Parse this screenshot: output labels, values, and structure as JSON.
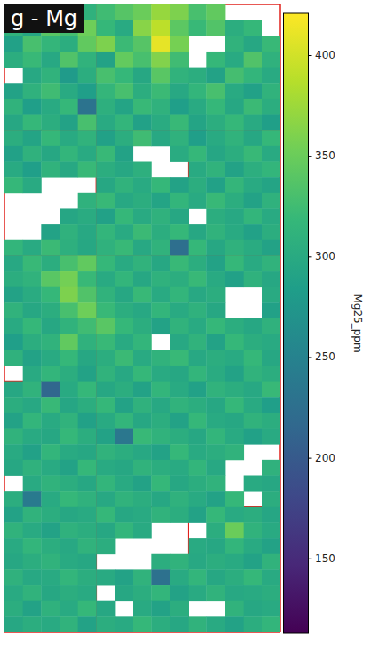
{
  "chart_data": {
    "type": "heatmap",
    "title": "g - Mg",
    "tick_labels": false,
    "cells": [
      [
        300,
        318,
        335,
        342,
        310,
        325,
        338,
        350,
        372,
        360,
        330,
        345,
        null,
        null,
        null
      ],
      [
        312,
        295,
        340,
        328,
        352,
        318,
        300,
        365,
        390,
        342,
        320,
        336,
        305,
        318,
        null
      ],
      [
        288,
        330,
        316,
        305,
        345,
        360,
        322,
        338,
        410,
        356,
        null,
        null,
        312,
        296,
        320
      ],
      [
        305,
        320,
        298,
        335,
        312,
        290,
        346,
        330,
        362,
        325,
        null,
        318,
        300,
        335,
        310
      ],
      [
        null,
        298,
        312,
        280,
        305,
        330,
        318,
        296,
        340,
        312,
        305,
        290,
        328,
        315,
        300
      ],
      [
        290,
        310,
        325,
        300,
        285,
        316,
        330,
        305,
        322,
        298,
        315,
        330,
        300,
        288,
        312
      ],
      [
        312,
        285,
        300,
        318,
        230,
        308,
        292,
        320,
        310,
        285,
        300,
        318,
        296,
        322,
        305
      ],
      [
        296,
        318,
        305,
        290,
        330,
        300,
        315,
        288,
        302,
        320,
        292,
        305,
        318,
        300,
        286
      ],
      [
        305,
        292,
        318,
        300,
        312,
        288,
        305,
        325,
        298,
        310,
        285,
        300,
        312,
        296,
        318
      ],
      [
        288,
        310,
        296,
        315,
        300,
        320,
        290,
        null,
        null,
        302,
        318,
        295,
        305,
        320,
        300
      ],
      [
        300,
        285,
        312,
        298,
        320,
        305,
        296,
        308,
        null,
        null,
        300,
        312,
        290,
        306,
        315
      ],
      [
        318,
        300,
        null,
        null,
        null,
        296,
        312,
        300,
        318,
        290,
        305,
        288,
        316,
        300,
        292
      ],
      [
        null,
        null,
        null,
        null,
        310,
        320,
        298,
        305,
        292,
        315,
        300,
        320,
        305,
        290,
        310
      ],
      [
        null,
        null,
        null,
        295,
        302,
        288,
        318,
        300,
        310,
        296,
        null,
        305,
        298,
        315,
        300
      ],
      [
        null,
        null,
        290,
        310,
        298,
        315,
        300,
        322,
        305,
        318,
        296,
        312,
        300,
        288,
        305
      ],
      [
        315,
        300,
        322,
        308,
        296,
        310,
        320,
        298,
        312,
        225,
        318,
        296,
        310,
        302,
        290
      ],
      [
        298,
        320,
        305,
        330,
        345,
        318,
        300,
        312,
        296,
        320,
        305,
        290,
        318,
        300,
        312
      ],
      [
        305,
        312,
        340,
        355,
        320,
        300,
        315,
        296,
        310,
        305,
        320,
        300,
        288,
        310,
        296
      ],
      [
        290,
        302,
        318,
        360,
        335,
        312,
        296,
        320,
        300,
        315,
        298,
        305,
        null,
        null,
        300
      ],
      [
        312,
        296,
        305,
        330,
        352,
        320,
        305,
        298,
        315,
        300,
        310,
        296,
        null,
        null,
        288
      ],
      [
        300,
        318,
        296,
        312,
        325,
        340,
        318,
        305,
        290,
        312,
        300,
        318,
        305,
        296,
        310
      ],
      [
        285,
        305,
        312,
        345,
        310,
        320,
        300,
        315,
        null,
        298,
        312,
        290,
        318,
        305,
        300
      ],
      [
        310,
        290,
        300,
        318,
        296,
        305,
        322,
        300,
        312,
        320,
        298,
        305,
        300,
        318,
        296
      ],
      [
        null,
        300,
        315,
        305,
        290,
        312,
        298,
        318,
        300,
        296,
        315,
        302,
        290,
        312,
        305
      ],
      [
        296,
        312,
        215,
        300,
        318,
        296,
        305,
        290,
        315,
        300,
        288,
        312,
        305,
        298,
        320
      ],
      [
        305,
        298,
        320,
        295,
        305,
        318,
        290,
        310,
        298,
        312,
        305,
        296,
        318,
        300,
        285
      ],
      [
        290,
        315,
        300,
        312,
        288,
        300,
        315,
        296,
        305,
        290,
        318,
        300,
        296,
        312,
        305
      ],
      [
        312,
        300,
        296,
        318,
        305,
        290,
        235,
        320,
        312,
        305,
        296,
        315,
        300,
        288,
        300
      ],
      [
        300,
        288,
        315,
        300,
        296,
        312,
        305,
        298,
        290,
        318,
        300,
        305,
        312,
        null,
        null
      ],
      [
        296,
        310,
        300,
        290,
        318,
        300,
        296,
        312,
        305,
        300,
        315,
        298,
        null,
        null,
        310
      ],
      [
        null,
        300,
        312,
        305,
        296,
        315,
        300,
        290,
        318,
        296,
        305,
        312,
        null,
        300,
        296
      ],
      [
        305,
        240,
        300,
        318,
        310,
        298,
        312,
        305,
        296,
        310,
        300,
        290,
        318,
        null,
        305
      ],
      [
        290,
        312,
        305,
        296,
        300,
        318,
        296,
        300,
        312,
        305,
        290,
        318,
        300,
        305,
        295
      ],
      [
        312,
        300,
        290,
        310,
        305,
        296,
        315,
        300,
        null,
        null,
        null,
        305,
        350,
        312,
        300
      ],
      [
        300,
        315,
        305,
        298,
        312,
        305,
        null,
        null,
        null,
        null,
        300,
        296,
        315,
        300,
        290
      ],
      [
        296,
        305,
        312,
        300,
        296,
        null,
        null,
        null,
        305,
        312,
        298,
        305,
        300,
        290,
        312
      ],
      [
        310,
        298,
        300,
        315,
        305,
        300,
        290,
        312,
        228,
        300,
        315,
        296,
        305,
        318,
        300
      ],
      [
        300,
        312,
        296,
        305,
        300,
        null,
        296,
        305,
        315,
        290,
        300,
        312,
        298,
        300,
        305
      ],
      [
        305,
        290,
        310,
        300,
        318,
        296,
        null,
        300,
        290,
        305,
        null,
        null,
        312,
        296,
        300
      ],
      [
        296,
        305,
        300,
        312,
        290,
        305,
        300,
        318,
        305,
        296,
        312,
        300,
        290,
        305,
        315
      ]
    ],
    "colorbar": {
      "label": "Mg25_ppm",
      "range": [
        113,
        421
      ],
      "ticks": [
        150,
        200,
        250,
        300,
        350,
        400
      ]
    }
  }
}
